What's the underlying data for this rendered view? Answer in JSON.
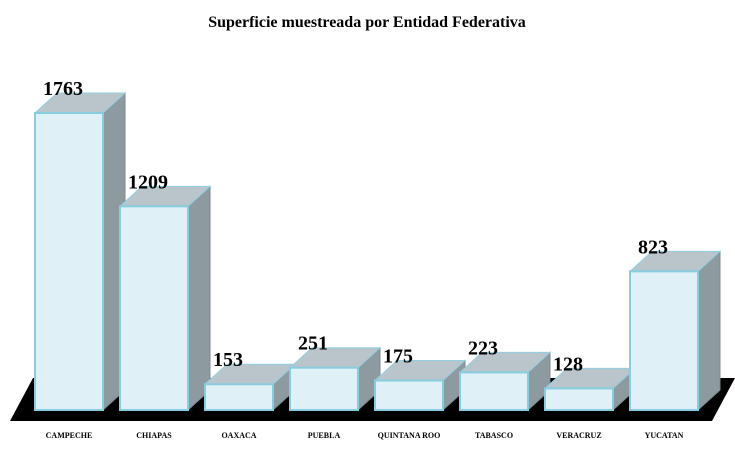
{
  "chart_data": {
    "type": "bar3d",
    "title": "Superficie muestreada por Entidad Federativa",
    "categories": [
      "CAMPECHE",
      "CHIAPAS",
      "OAXACA",
      "PUEBLA",
      "QUINTANA ROO",
      "TABASCO",
      "VERACRUZ",
      "YUCATAN"
    ],
    "values": [
      1763,
      1209,
      153,
      251,
      175,
      223,
      128,
      823
    ],
    "color": "#dff0f7"
  }
}
